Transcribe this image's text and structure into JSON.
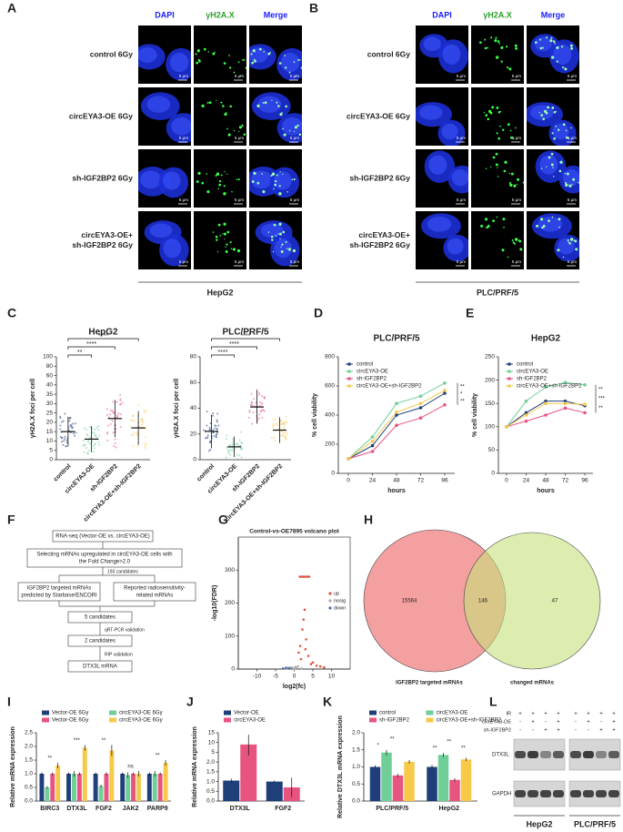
{
  "panel_labels": [
    "A",
    "B",
    "C",
    "D",
    "E",
    "F",
    "G",
    "H",
    "I",
    "J",
    "K",
    "L"
  ],
  "microscopy": [
    {
      "channels": [
        "DAPI",
        "γH2A.X",
        "Merge"
      ],
      "rows": [
        [
          "control 6Gy"
        ],
        [
          "circEYA3-OE 6Gy"
        ],
        [
          "sh-IGF2BP2 6Gy"
        ],
        [
          "circEYA3-OE+",
          "sh-IGF2BP2 6Gy"
        ]
      ],
      "scale_bar": "5 μm",
      "cell_line": "HepG2"
    },
    {
      "channels": [
        "DAPI",
        "γH2A.X",
        "Merge"
      ],
      "rows": [
        [
          "control 6Gy"
        ],
        [
          "circEYA3-OE 6Gy"
        ],
        [
          "sh-IGF2BP2 6Gy"
        ],
        [
          "circEYA3-OE+",
          "sh-IGF2BP2 6Gy"
        ]
      ],
      "scale_bar": "5 μm",
      "cell_line": "PLC/PRF/5"
    }
  ],
  "flowchart": {
    "nodes": [
      {
        "lines": [
          "RNA-seq (Vector-OE vs. circEYA3-OE)"
        ]
      },
      {
        "lines": [
          "Selecting mRNAs upregulated in circEYA3-OE cells with",
          "the Fold Change>2.0"
        ]
      },
      {
        "lines": [
          "IGF2BP2 targeted mRNAs",
          "predicted by Starbase/ENCORI"
        ]
      },
      {
        "lines": [
          "Reported radiosensitivity-",
          "related mRNAs"
        ]
      },
      {
        "lines": [
          "5 candidates"
        ]
      },
      {
        "lines": [
          "2 candidates"
        ]
      },
      {
        "lines": [
          "DTX3L mRNA"
        ]
      }
    ],
    "edges": [
      "193 candidates",
      "qRT-PCR validation",
      "RIP validation"
    ]
  },
  "venn": {
    "sets": [
      "IGF2BP2 targeted mRNAs",
      "changed mRNAs"
    ],
    "counts": [
      15564,
      146,
      47
    ]
  },
  "blot": {
    "conditions": [
      "IR",
      "circEYA3-OE",
      "sh-IGF2BP2"
    ],
    "signs": [
      [
        "+",
        "+",
        "+",
        "+"
      ],
      [
        "-",
        "+",
        "-",
        "+"
      ],
      [
        "-",
        "-",
        "+",
        "+"
      ]
    ],
    "bands": [
      "DTX3L",
      "GAPDH"
    ],
    "cell_lines": [
      "HepG2",
      "PLC/PRF/5"
    ]
  },
  "chart_data": [
    {
      "type": "dotplot",
      "title": "HepG2",
      "ylabel": "γH2A.X foci per cell",
      "categories": [
        "control",
        "circEYA3-OE",
        "sh-IGF2BP2",
        "circEYA3-OE+sh-IGF2BP2"
      ],
      "values": [
        15,
        11,
        22,
        17
      ],
      "errors": [
        8,
        7,
        10,
        9
      ],
      "colors": [
        "#1f3f7a",
        "#6fcf97",
        "#e75480",
        "#f7c948"
      ],
      "ylim": [
        0,
        100
      ],
      "yticks": [
        0,
        5,
        10,
        15,
        20,
        25,
        30,
        35,
        40,
        60,
        80,
        100
      ],
      "annotations": [
        "**",
        "****",
        "****"
      ]
    },
    {
      "type": "dotplot",
      "title": "PLC/PRF/5",
      "ylabel": "γH2A.X foci per cell",
      "categories": [
        "control",
        "circEYA3-OE",
        "sh-IGF2BP2",
        "circEYA3-OE+sh-IGF2BP2"
      ],
      "values": [
        22,
        10,
        41,
        23
      ],
      "errors": [
        13,
        8,
        13,
        10
      ],
      "colors": [
        "#1f3f7a",
        "#6fcf97",
        "#e75480",
        "#f7c948"
      ],
      "ylim": [
        0,
        80
      ],
      "yticks": [
        0,
        20,
        40,
        60,
        80
      ],
      "annotations": [
        "****",
        "****",
        "****"
      ]
    },
    {
      "type": "line",
      "title": "PLC/PRF/5",
      "xlabel": "hours",
      "ylabel": "% cell viability",
      "x": [
        0,
        24,
        48,
        72,
        96
      ],
      "xlim": [
        -10,
        106
      ],
      "xticks": [
        0,
        24,
        48,
        72,
        96
      ],
      "ylim": [
        0,
        800
      ],
      "yticks": [
        0,
        200,
        400,
        600,
        800
      ],
      "series": [
        {
          "name": "control",
          "color": "#1f3f7a",
          "values": [
            100,
            190,
            400,
            450,
            550
          ]
        },
        {
          "name": "circEYA3-OE",
          "color": "#6fcf97",
          "values": [
            100,
            250,
            480,
            530,
            620
          ]
        },
        {
          "name": "sh-IGF2BP2",
          "color": "#e75480",
          "values": [
            100,
            150,
            330,
            380,
            470
          ]
        },
        {
          "name": "circEYA3-OE+sh-IGF2BP2",
          "color": "#f7c948",
          "values": [
            100,
            220,
            420,
            480,
            570
          ]
        }
      ],
      "annotations": [
        "**",
        "*",
        "**"
      ]
    },
    {
      "type": "line",
      "title": "HepG2",
      "xlabel": "hours",
      "ylabel": "% cell viability",
      "x": [
        0,
        24,
        48,
        72,
        96
      ],
      "xlim": [
        -10,
        106
      ],
      "xticks": [
        0,
        24,
        48,
        72,
        96
      ],
      "ylim": [
        0,
        250
      ],
      "yticks": [
        0,
        50,
        100,
        150,
        200,
        250
      ],
      "series": [
        {
          "name": "control",
          "color": "#1f3f7a",
          "values": [
            100,
            130,
            155,
            155,
            145
          ]
        },
        {
          "name": "circEYA3-OE",
          "color": "#6fcf97",
          "values": [
            100,
            155,
            185,
            195,
            190
          ]
        },
        {
          "name": "sh-IGF2BP2",
          "color": "#e75480",
          "values": [
            100,
            112,
            125,
            140,
            130
          ]
        },
        {
          "name": "circEYA3-OE+sh-IGF2BP2",
          "color": "#f7c948",
          "values": [
            100,
            125,
            150,
            150,
            148
          ]
        }
      ],
      "annotations": [
        "**",
        "***",
        "**"
      ]
    },
    {
      "type": "scatter",
      "title": "Control-vs-OE7895 volcano plot",
      "xlabel": "log2(fc)",
      "ylabel": "-log10(FDR)",
      "xlim": [
        -15,
        15
      ],
      "xticks": [
        -10,
        -5,
        0,
        5,
        10
      ],
      "ylim": [
        0,
        320
      ],
      "yticks": [
        0,
        100,
        200,
        300
      ],
      "series": [
        {
          "name": "up",
          "color": "#e0533f",
          "x": [
            1.5,
            2,
            2.5,
            3,
            3.5,
            4,
            5,
            6,
            1.2,
            2.2,
            3,
            4.5,
            2.8,
            3.2,
            1.8,
            7,
            8,
            2.5,
            1.6,
            3.8
          ],
          "y": [
            280,
            280,
            280,
            280,
            280,
            280,
            20,
            10,
            50,
            120,
            60,
            15,
            180,
            90,
            30,
            8,
            5,
            150,
            70,
            40
          ]
        },
        {
          "name": "nosig",
          "color": "#aaaaaa",
          "x": [
            -2,
            -1,
            0,
            0.5,
            1,
            -3,
            2,
            -0.5,
            0.3
          ],
          "y": [
            2,
            5,
            1,
            3,
            8,
            1,
            2,
            4,
            6
          ]
        },
        {
          "name": "down",
          "color": "#4a6fb5",
          "x": [
            -1.5,
            -3,
            -2.2
          ],
          "y": [
            3,
            2,
            4
          ]
        }
      ]
    },
    {
      "type": "bar",
      "ylabel": "Relative mRNA expression",
      "categories": [
        "BIRC3",
        "DTX3L",
        "FGF2",
        "JAK2",
        "PARP9"
      ],
      "ylim": [
        0,
        2.5
      ],
      "yticks": [
        {
          "value": 0,
          "label": "0.0"
        },
        {
          "value": 0.5,
          "label": "0.5"
        },
        {
          "value": 1,
          "label": "1.0"
        },
        {
          "value": 1.5,
          "label": "1.5"
        },
        {
          "value": 2,
          "label": "2.0"
        },
        {
          "value": 2.5,
          "label": "2.5"
        }
      ],
      "series": [
        {
          "name": "Vector-OE 6Gy",
          "color": "#1f3f7a",
          "values": [
            1,
            1,
            1,
            1,
            1
          ],
          "errors": [
            0.05,
            0.05,
            0.05,
            0.05,
            0.05
          ]
        },
        {
          "name": "circEYA3-OE 6Gy",
          "color": "#6fcf97",
          "values": [
            0.5,
            1.0,
            0.55,
            0.95,
            1.0
          ],
          "errors": [
            0.05,
            0.1,
            0.05,
            0.1,
            0.1
          ]
        },
        {
          "name": "Vector-OE 6Gy",
          "color": "#e75480",
          "values": [
            1,
            1,
            1,
            1,
            1
          ],
          "errors": [
            0.05,
            0.05,
            0.05,
            0.05,
            0.05
          ]
        },
        {
          "name": "circEYA3-OE 6Gy",
          "color": "#f7c948",
          "values": [
            1.3,
            1.95,
            1.85,
            1.0,
            1.4
          ],
          "errors": [
            0.1,
            0.1,
            0.2,
            0.1,
            0.1
          ]
        }
      ],
      "annotations": [
        "**",
        "***",
        "**",
        "ns",
        "**"
      ]
    },
    {
      "type": "bar",
      "ylabel": "Relative mRNA expression",
      "categories": [
        "DTX3L",
        "FGF2"
      ],
      "ylim": [
        0,
        15
      ],
      "yticks": [
        {
          "value": 0,
          "label": "0.0"
        },
        {
          "value": 0.5,
          "label": "0.5"
        },
        {
          "value": 1,
          "label": "1.0"
        },
        {
          "value": 1.5,
          "label": "1.5"
        },
        {
          "value": 2,
          "label": "2.0"
        },
        5,
        10,
        15
      ],
      "series": [
        {
          "name": "Vector-OE",
          "color": "#1f3f7a",
          "values": [
            1.05,
            1.0
          ],
          "errors": [
            0.1,
            0.05
          ]
        },
        {
          "name": "circEYA3-OE",
          "color": "#e75480",
          "values": [
            9,
            0.7
          ],
          "errors": [
            5,
            0.5
          ]
        }
      ]
    },
    {
      "type": "bar",
      "ylabel": "Relative DTX3L mRNA expression",
      "categories": [
        "PLC/PRF/5",
        "HepG2"
      ],
      "ylim": [
        0,
        2
      ],
      "yticks": [
        {
          "value": 0,
          "label": "0.0"
        },
        {
          "value": 0.5,
          "label": "0.5"
        },
        {
          "value": 1,
          "label": "1.0"
        },
        {
          "value": 1.5,
          "label": "1.5"
        },
        {
          "value": 2,
          "label": "2.0"
        }
      ],
      "series": [
        {
          "name": "control",
          "color": "#1f3f7a",
          "values": [
            1.0,
            1.0
          ],
          "errors": [
            0.05,
            0.06
          ]
        },
        {
          "name": "circEYA3-OE",
          "color": "#6fcf97",
          "values": [
            1.42,
            1.35
          ],
          "errors": [
            0.08,
            0.06
          ]
        },
        {
          "name": "sh-IGF2BP2",
          "color": "#e75480",
          "values": [
            0.75,
            0.62
          ],
          "errors": [
            0.05,
            0.05
          ]
        },
        {
          "name": "circEYA3-OE+sh-IGF2BP2",
          "color": "#f7c948",
          "values": [
            1.15,
            1.22
          ],
          "errors": [
            0.05,
            0.05
          ]
        }
      ],
      "annotations": [
        [
          "*",
          "**"
        ],
        [
          "**",
          "**",
          "**"
        ]
      ]
    }
  ]
}
